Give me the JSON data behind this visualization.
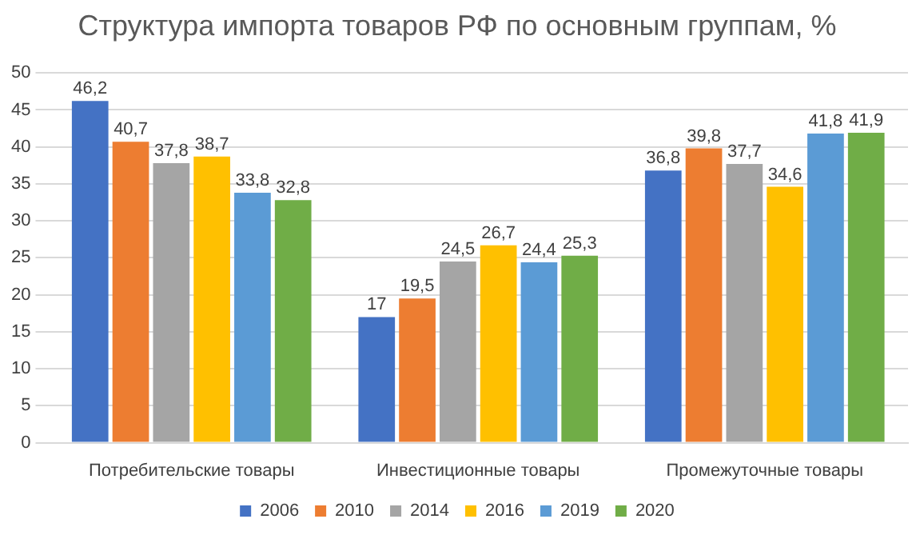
{
  "chart_data": {
    "type": "bar",
    "title": "Структура импорта товаров РФ по основным группам, %",
    "categories": [
      "Потребительские товары",
      "Инвестиционные товары",
      "Промежуточные товары"
    ],
    "series": [
      {
        "name": "2006",
        "color": "#4472c4",
        "values": [
          46.2,
          17,
          36.8
        ],
        "value_labels": [
          "46,2",
          "17",
          "36,8"
        ]
      },
      {
        "name": "2010",
        "color": "#ed7d31",
        "values": [
          40.7,
          19.5,
          39.8
        ],
        "value_labels": [
          "40,7",
          "19,5",
          "39,8"
        ]
      },
      {
        "name": "2014",
        "color": "#a5a5a5",
        "values": [
          37.8,
          24.5,
          37.7
        ],
        "value_labels": [
          "37,8",
          "24,5",
          "37,7"
        ]
      },
      {
        "name": "2016",
        "color": "#ffc000",
        "values": [
          38.7,
          26.7,
          34.6
        ],
        "value_labels": [
          "38,7",
          "26,7",
          "34,6"
        ]
      },
      {
        "name": "2019",
        "color": "#5b9bd5",
        "values": [
          33.8,
          24.4,
          41.8
        ],
        "value_labels": [
          "33,8",
          "24,4",
          "41,8"
        ]
      },
      {
        "name": "2020",
        "color": "#70ad47",
        "values": [
          32.8,
          25.3,
          41.9
        ],
        "value_labels": [
          "32,8",
          "25,3",
          "41,9"
        ]
      }
    ],
    "ylim": [
      0,
      50
    ],
    "yticks": [
      0,
      5,
      10,
      15,
      20,
      25,
      30,
      35,
      40,
      45,
      50
    ],
    "grid": "y",
    "legend": "bottom"
  }
}
